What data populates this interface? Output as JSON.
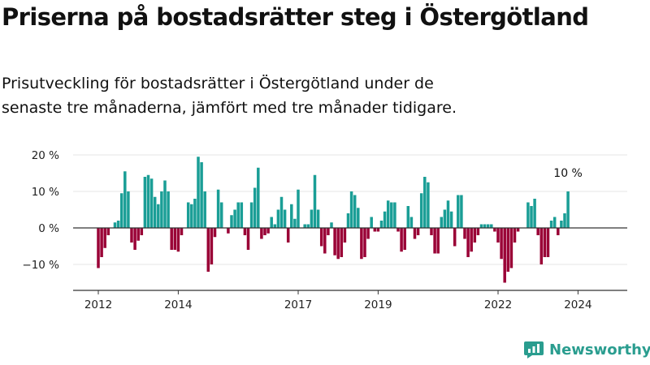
{
  "header": {
    "title": "Priserna på bostadsrätter steg i Östergötland",
    "subtitle": "Prisutveckling för bostadsrätter i Östergötland under de senaste tre månaderna, jämfört med tre månader tidigare."
  },
  "brand": {
    "name": "Newsworthy",
    "icon": "newsworthy-logo-icon"
  },
  "colors": {
    "positive": "#1a9e96",
    "negative": "#9a0036",
    "axis": "#333333",
    "grid": "#e6e6e6"
  },
  "chart_data": {
    "type": "bar",
    "x_start": "2011-01",
    "x_end": "2025-12",
    "x_ticks": [
      "2012",
      "2014",
      "2017",
      "2019",
      "2022",
      "2024"
    ],
    "y_ticks": [
      "20 %",
      "10 %",
      "0 %",
      "−10 %"
    ],
    "ylim": [
      -17,
      24
    ],
    "annotation": "10 %",
    "series": [
      {
        "values": [
          [
            "2012-01",
            -11
          ],
          [
            "2012-02",
            -8
          ],
          [
            "2012-03",
            -5.5
          ],
          [
            "2012-04",
            -2
          ],
          [
            "2012-06",
            1.5
          ],
          [
            "2012-07",
            2
          ],
          [
            "2012-08",
            9.5
          ],
          [
            "2012-09",
            15.5
          ],
          [
            "2012-10",
            10
          ],
          [
            "2012-11",
            -4
          ],
          [
            "2012-12",
            -6
          ],
          [
            "2013-01",
            -3.5
          ],
          [
            "2013-02",
            -2
          ],
          [
            "2013-03",
            14
          ],
          [
            "2013-04",
            14.5
          ],
          [
            "2013-05",
            13.5
          ],
          [
            "2013-06",
            8.5
          ],
          [
            "2013-07",
            6.5
          ],
          [
            "2013-08",
            10
          ],
          [
            "2013-09",
            13
          ],
          [
            "2013-10",
            10
          ],
          [
            "2013-11",
            -6
          ],
          [
            "2013-12",
            -6
          ],
          [
            "2014-01",
            -6.5
          ],
          [
            "2014-02",
            -2
          ],
          [
            "2014-04",
            7
          ],
          [
            "2014-05",
            6.5
          ],
          [
            "2014-06",
            8
          ],
          [
            "2014-07",
            19.5
          ],
          [
            "2014-08",
            18
          ],
          [
            "2014-09",
            10
          ],
          [
            "2014-10",
            -12
          ],
          [
            "2014-11",
            -10
          ],
          [
            "2014-12",
            -2.5
          ],
          [
            "2015-01",
            10.5
          ],
          [
            "2015-02",
            7
          ],
          [
            "2015-04",
            -1.5
          ],
          [
            "2015-05",
            3.5
          ],
          [
            "2015-06",
            5
          ],
          [
            "2015-07",
            7
          ],
          [
            "2015-08",
            7
          ],
          [
            "2015-09",
            -2
          ],
          [
            "2015-10",
            -6
          ],
          [
            "2015-11",
            7
          ],
          [
            "2015-12",
            11
          ],
          [
            "2016-01",
            16.5
          ],
          [
            "2016-02",
            -3
          ],
          [
            "2016-03",
            -2
          ],
          [
            "2016-04",
            -1.5
          ],
          [
            "2016-05",
            3
          ],
          [
            "2016-06",
            1
          ],
          [
            "2016-07",
            5
          ],
          [
            "2016-08",
            8.5
          ],
          [
            "2016-09",
            5
          ],
          [
            "2016-10",
            -4
          ],
          [
            "2016-11",
            6.5
          ],
          [
            "2016-12",
            2.5
          ],
          [
            "2017-01",
            10.5
          ],
          [
            "2017-03",
            1
          ],
          [
            "2017-04",
            1
          ],
          [
            "2017-05",
            5
          ],
          [
            "2017-06",
            14.5
          ],
          [
            "2017-07",
            5
          ],
          [
            "2017-08",
            -5
          ],
          [
            "2017-09",
            -7
          ],
          [
            "2017-10",
            -2
          ],
          [
            "2017-11",
            1.5
          ],
          [
            "2017-12",
            -7.5
          ],
          [
            "2018-01",
            -8.5
          ],
          [
            "2018-02",
            -8
          ],
          [
            "2018-03",
            -4
          ],
          [
            "2018-04",
            4
          ],
          [
            "2018-05",
            10
          ],
          [
            "2018-06",
            9
          ],
          [
            "2018-07",
            5.5
          ],
          [
            "2018-08",
            -8.5
          ],
          [
            "2018-09",
            -8
          ],
          [
            "2018-10",
            -3
          ],
          [
            "2018-11",
            3
          ],
          [
            "2018-12",
            -1
          ],
          [
            "2019-01",
            -1
          ],
          [
            "2019-02",
            2
          ],
          [
            "2019-03",
            4.5
          ],
          [
            "2019-04",
            7.5
          ],
          [
            "2019-05",
            7
          ],
          [
            "2019-06",
            7
          ],
          [
            "2019-07",
            -1
          ],
          [
            "2019-08",
            -6.5
          ],
          [
            "2019-09",
            -6
          ],
          [
            "2019-10",
            6
          ],
          [
            "2019-11",
            3
          ],
          [
            "2019-12",
            -3
          ],
          [
            "2020-01",
            -2
          ],
          [
            "2020-02",
            9.5
          ],
          [
            "2020-03",
            14
          ],
          [
            "2020-04",
            12.5
          ],
          [
            "2020-05",
            -2
          ],
          [
            "2020-06",
            -7
          ],
          [
            "2020-07",
            -7
          ],
          [
            "2020-08",
            3
          ],
          [
            "2020-09",
            5
          ],
          [
            "2020-10",
            7.5
          ],
          [
            "2020-11",
            4.5
          ],
          [
            "2020-12",
            -5
          ],
          [
            "2021-01",
            9
          ],
          [
            "2021-02",
            9
          ],
          [
            "2021-03",
            -3
          ],
          [
            "2021-04",
            -8
          ],
          [
            "2021-05",
            -6.5
          ],
          [
            "2021-06",
            -4
          ],
          [
            "2021-07",
            -2
          ],
          [
            "2021-08",
            1
          ],
          [
            "2021-09",
            1
          ],
          [
            "2021-10",
            1
          ],
          [
            "2021-11",
            1
          ],
          [
            "2021-12",
            -1
          ],
          [
            "2022-01",
            -4
          ],
          [
            "2022-02",
            -8.5
          ],
          [
            "2022-03",
            -15
          ],
          [
            "2022-04",
            -12
          ],
          [
            "2022-05",
            -11
          ],
          [
            "2022-06",
            -4
          ],
          [
            "2022-07",
            -1
          ],
          [
            "2022-10",
            7
          ],
          [
            "2022-11",
            6
          ],
          [
            "2022-12",
            8
          ],
          [
            "2023-01",
            -2
          ],
          [
            "2023-02",
            -10
          ],
          [
            "2023-03",
            -8
          ],
          [
            "2023-04",
            -8
          ],
          [
            "2023-05",
            2
          ],
          [
            "2023-06",
            3
          ],
          [
            "2023-07",
            -2
          ],
          [
            "2023-08",
            2
          ],
          [
            "2023-09",
            4
          ],
          [
            "2023-10",
            10
          ]
        ]
      }
    ]
  }
}
